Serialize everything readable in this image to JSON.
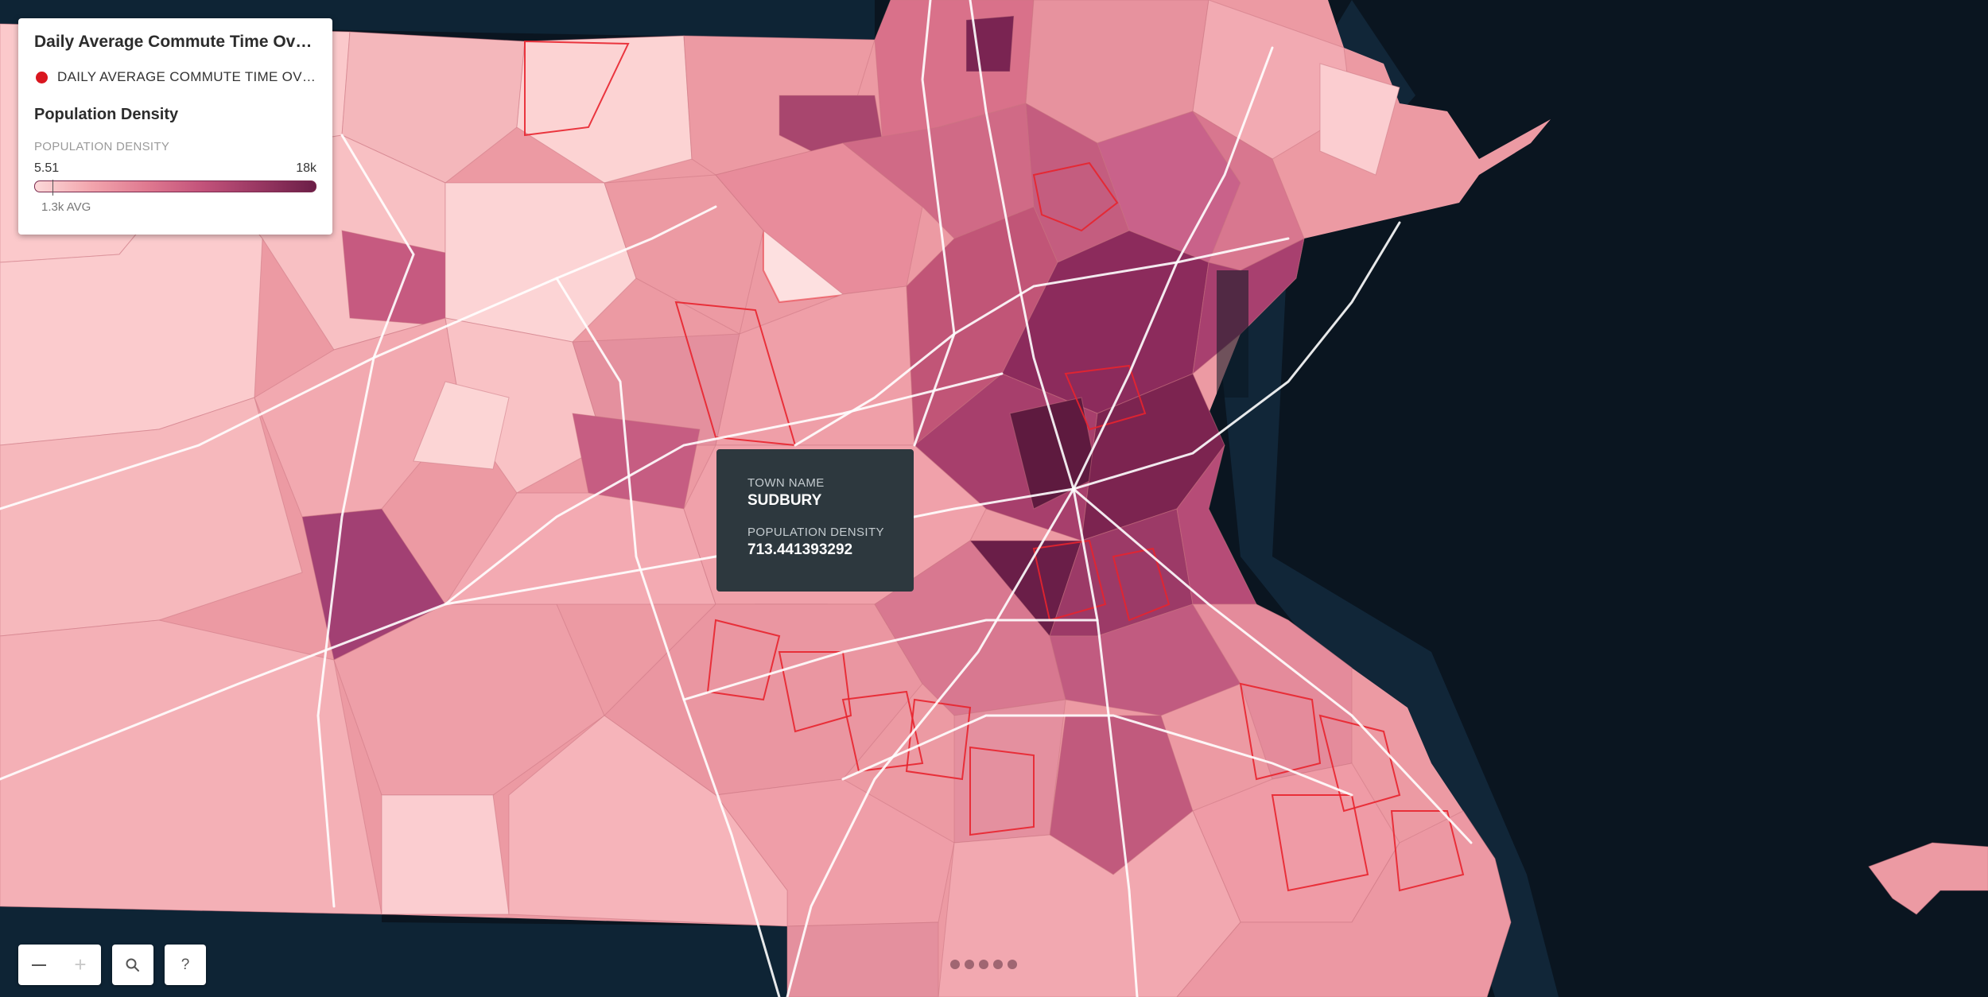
{
  "legend": {
    "title": "Daily Average Commute Time Over ...",
    "layer_label": "DAILY AVERAGE COMMUTE TIME OVER ...",
    "layer_color": "#d9161f",
    "density_title": "Population Density",
    "density_sublabel": "POPULATION DENSITY",
    "range_min": "5.51",
    "range_max": "18k",
    "avg_label": "1.3k AVG",
    "ramp": [
      "#fcd9d9",
      "#f2a5ad",
      "#df7990",
      "#c2527a",
      "#983762",
      "#6b1e47"
    ]
  },
  "tooltip": {
    "town_key": "TOWN NAME",
    "town_value": "SUDBURY",
    "density_key": "POPULATION DENSITY",
    "density_value": "713.441393292"
  },
  "controls": {
    "zoom_out_icon": "minus-icon",
    "zoom_in_label": "+",
    "search_icon": "search-icon",
    "help_label": "?"
  },
  "map": {
    "ocean_color": "#0a1520",
    "outside_color": "#0e2435",
    "road_color": "#ffffff",
    "commute_outline_color": "#e8242e"
  }
}
